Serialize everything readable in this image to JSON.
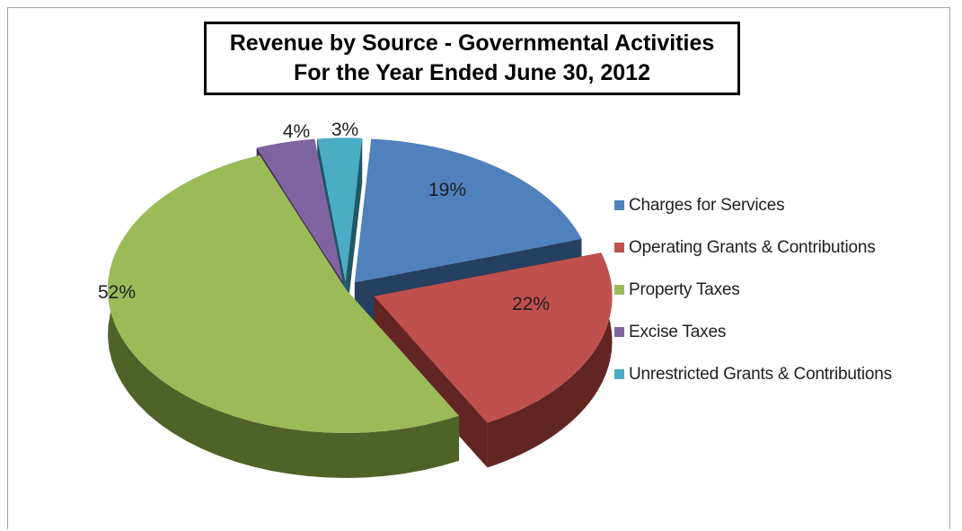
{
  "chart_data": {
    "type": "pie",
    "title_lines": [
      "Revenue by Source - Governmental Activities",
      "For the Year Ended June 30, 2012"
    ],
    "categories": [
      "Charges for Services",
      "Operating Grants & Contributions",
      "Property Taxes",
      "Excise Taxes",
      "Unrestricted Grants & Contributions"
    ],
    "values": [
      19,
      22,
      52,
      4,
      3
    ],
    "labels": [
      "19%",
      "22%",
      "52%",
      "4%",
      "3%"
    ],
    "colors": [
      "#4f81bd",
      "#c0504d",
      "#9bbb59",
      "#8064a2",
      "#4bacc6"
    ],
    "side_colors": [
      "#254061",
      "#632523",
      "#4f6228",
      "#3f3151",
      "#205867"
    ],
    "exploded": true,
    "three_d": true,
    "legend_position": "right"
  }
}
